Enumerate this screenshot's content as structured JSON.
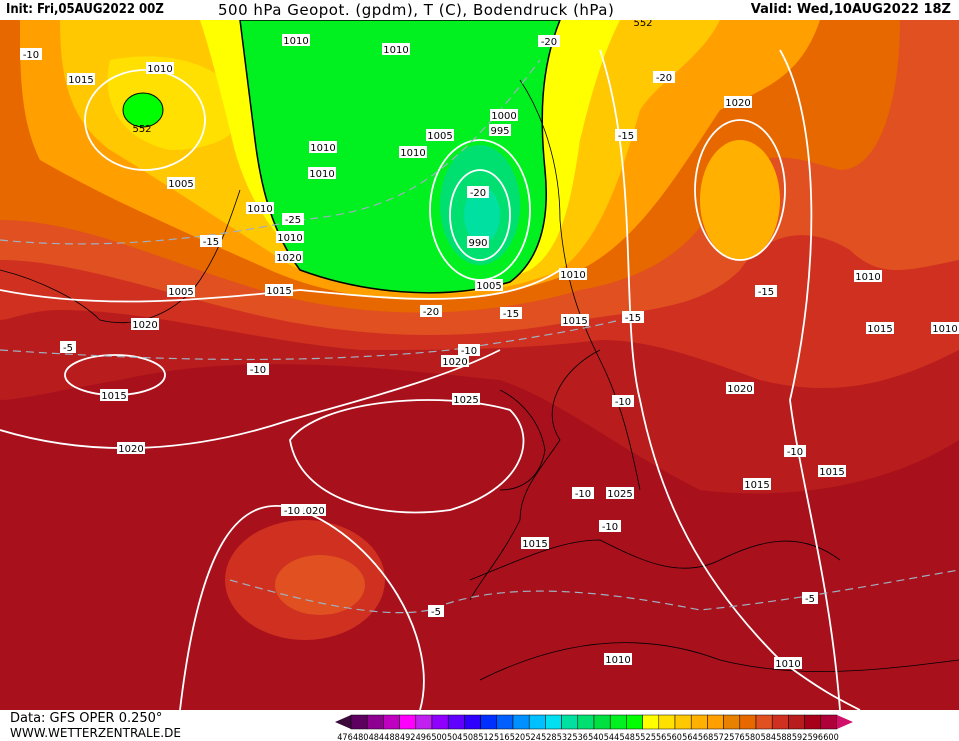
{
  "header": {
    "init": "Init: Fri,05AUG2022 00Z",
    "title": "500 hPa Geopot. (gpdm), T (C), Bodendruck (hPa)",
    "valid": "Valid: Wed,10AUG2022 18Z"
  },
  "footer": {
    "data_source": "Data: GFS OPER 0.250°",
    "website": "WWW.WETTERZENTRALE.DE"
  },
  "legend": {
    "labels": [
      "476",
      "480",
      "484",
      "488",
      "492",
      "496",
      "500",
      "504",
      "508",
      "512",
      "516",
      "520",
      "524",
      "528",
      "532",
      "536",
      "540",
      "544",
      "548",
      "552",
      "556",
      "560",
      "564",
      "568",
      "572",
      "576",
      "580",
      "584",
      "588",
      "592",
      "596",
      "600"
    ],
    "colors": [
      "#3a0a3a",
      "#5e0060",
      "#8e0090",
      "#c000c0",
      "#ff00ff",
      "#c020f0",
      "#9000ff",
      "#6000ff",
      "#3000ff",
      "#0030ff",
      "#0060ff",
      "#0090ff",
      "#00c0ff",
      "#00e0f0",
      "#00e0a0",
      "#00e070",
      "#00e040",
      "#00f020",
      "#00ff00",
      "#ffff00",
      "#ffe000",
      "#ffc800",
      "#ffb000",
      "#ffa000",
      "#e88000",
      "#e86800",
      "#e05020",
      "#d03020",
      "#b81c1c",
      "#a80018",
      "#b0003a",
      "#d0106a"
    ]
  },
  "map": {
    "isobar_labels": [
      "1010",
      "1010",
      "1015",
      "1010",
      "1005",
      "1010",
      "1010",
      "1010",
      "1005",
      "1000",
      "995",
      "990",
      "1010",
      "1015",
      "1005",
      "1020",
      "1020",
      "1015",
      "1020",
      "1015",
      "1025",
      "1020",
      "1025",
      "1015",
      "1015",
      "1015",
      "1020",
      "1010",
      "1015",
      "1005",
      "1010",
      "1010",
      "1020",
      "1010",
      "1010",
      "1020",
      "1010"
    ],
    "temperature_labels": [
      "-10",
      "-20",
      "-20",
      "-25",
      "-15",
      "-15",
      "-20",
      "-15",
      "-15",
      "-20",
      "-10",
      "-10",
      "-5",
      "-15",
      "-10",
      "-10",
      "-10",
      "-10",
      "-5",
      "-5",
      "-10"
    ],
    "height_labels": [
      "552",
      "552"
    ]
  }
}
